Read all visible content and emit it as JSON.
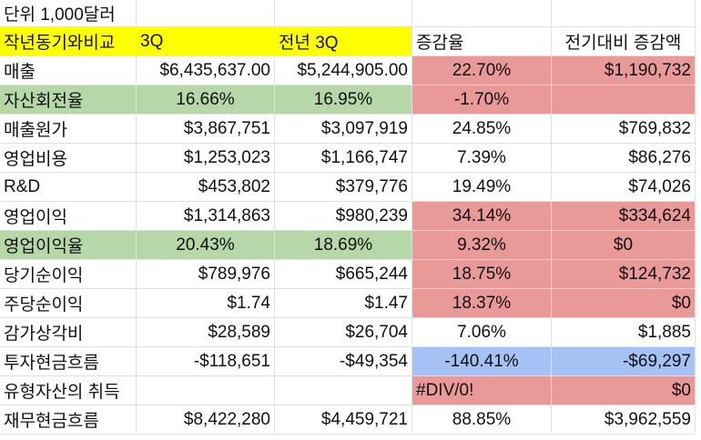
{
  "unit_note": "단위 1,000달러",
  "colors": {
    "header_yellow": "#ffff00",
    "ratio_green": "#b6d7a8",
    "highlight_red": "#ea9999",
    "highlight_blue": "#a4c2f4"
  },
  "headers": [
    "작년동기와비교",
    "3Q",
    "전년 3Q",
    "증감율",
    "전기대비 증감액"
  ],
  "rows": [
    {
      "label": "매출",
      "cur": "$6,435,637.00",
      "prev": "$5,244,905.00",
      "pct": "22.70%",
      "diff": "$1,190,732"
    },
    {
      "label": "자산회전율",
      "cur": "16.66%",
      "prev": "16.95%",
      "pct": "-1.70%",
      "diff": ""
    },
    {
      "label": "매출원가",
      "cur": "$3,867,751",
      "prev": "$3,097,919",
      "pct": "24.85%",
      "diff": "$769,832"
    },
    {
      "label": "영업비용",
      "cur": "$1,253,023",
      "prev": "$1,166,747",
      "pct": "7.39%",
      "diff": "$86,276"
    },
    {
      "label": "R&D",
      "cur": "$453,802",
      "prev": "$379,776",
      "pct": "19.49%",
      "diff": "$74,026"
    },
    {
      "label": "영업이익",
      "cur": "$1,314,863",
      "prev": "$980,239",
      "pct": "34.14%",
      "diff": "$334,624"
    },
    {
      "label": "영업이익율",
      "cur": "20.43%",
      "prev": "18.69%",
      "pct": "9.32%",
      "diff": "$0"
    },
    {
      "label": "당기순이익",
      "cur": "$789,976",
      "prev": "$665,244",
      "pct": "18.75%",
      "diff": "$124,732"
    },
    {
      "label": "주당순이익",
      "cur": "$1.74",
      "prev": "$1.47",
      "pct": "18.37%",
      "diff": "$0"
    },
    {
      "label": "감가상각비",
      "cur": "$28,589",
      "prev": "$26,704",
      "pct": "7.06%",
      "diff": "$1,885"
    },
    {
      "label": "투자현금흐름",
      "cur": "-$118,651",
      "prev": "-$49,354",
      "pct": "-140.41%",
      "diff": "-$69,297"
    },
    {
      "label": "유형자산의 취득",
      "cur": "",
      "prev": "",
      "pct": "#DIV/0!",
      "diff": "$0"
    },
    {
      "label": "재무현금흐름",
      "cur": "$8,422,280",
      "prev": "$4,459,721",
      "pct": "88.85%",
      "diff": "$3,962,559"
    }
  ]
}
